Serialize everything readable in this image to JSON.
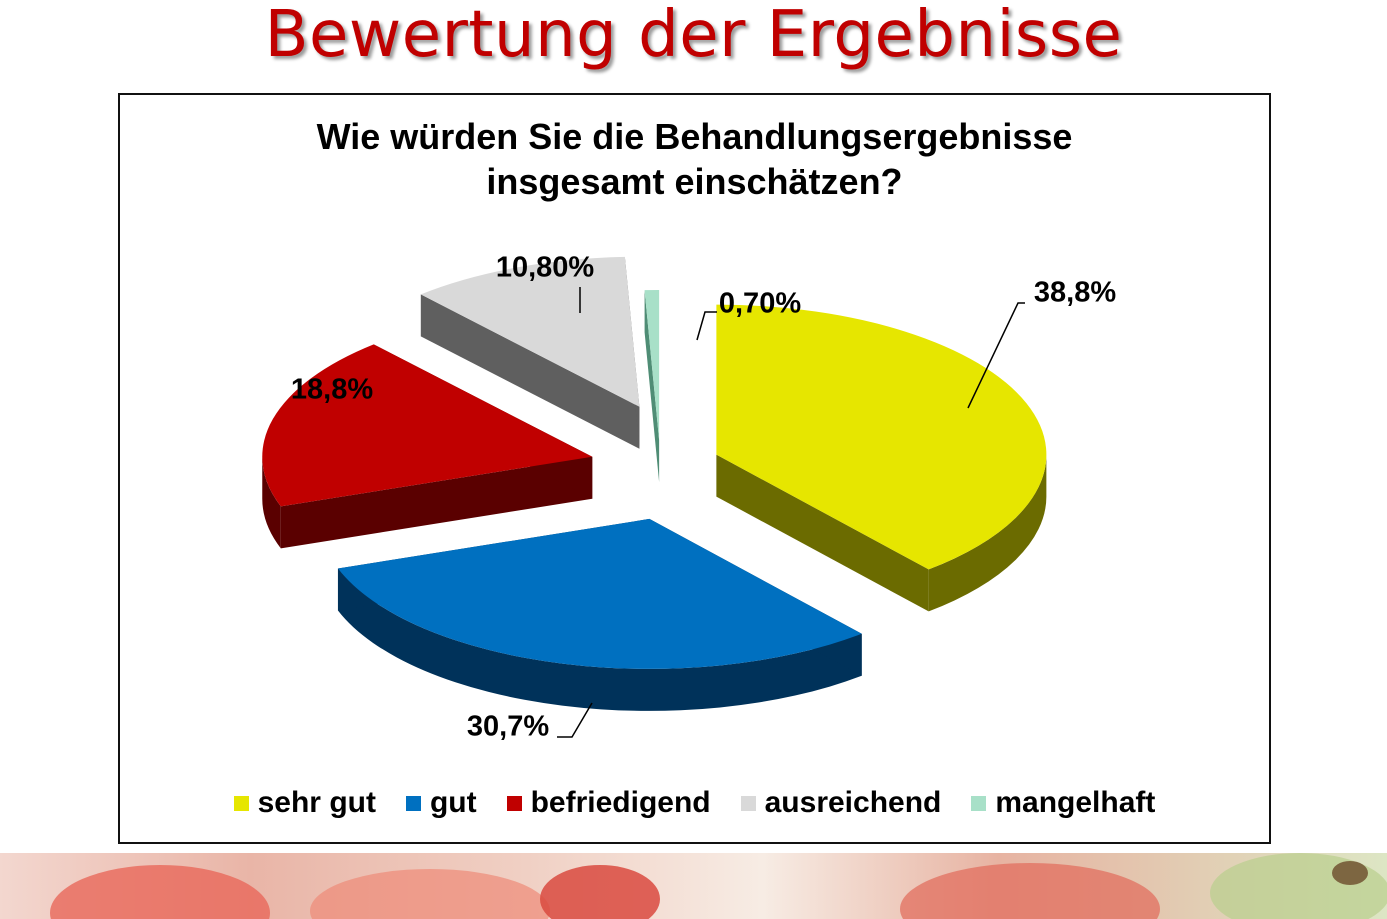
{
  "slide": {
    "title": "Bewertung der Ergebnisse"
  },
  "chart_data": {
    "type": "pie",
    "title": "Wie würden Sie die Behandlungsergebnisse insgesamt einschätzen?",
    "title_lines": [
      "Wie würden Sie die Behandlungsergebnisse",
      "insgesamt einschätzen?"
    ],
    "categories": [
      "sehr gut",
      "gut",
      "befriedigend",
      "ausreichend",
      "mangelhaft"
    ],
    "values": [
      38.8,
      30.7,
      18.8,
      10.8,
      0.7
    ],
    "data_labels": [
      "38,8%",
      "30,7%",
      "18,8%",
      "10,80%",
      "0,70%"
    ],
    "colors": [
      "#e6e600",
      "#0070c0",
      "#c00000",
      "#d9d9d9",
      "#a8e0c8"
    ],
    "side_colors": [
      "#6b6b00",
      "#00325a",
      "#5a0000",
      "#5f5f5f",
      "#4f8d75"
    ],
    "style": "3D exploded pie",
    "legend_position": "bottom"
  }
}
